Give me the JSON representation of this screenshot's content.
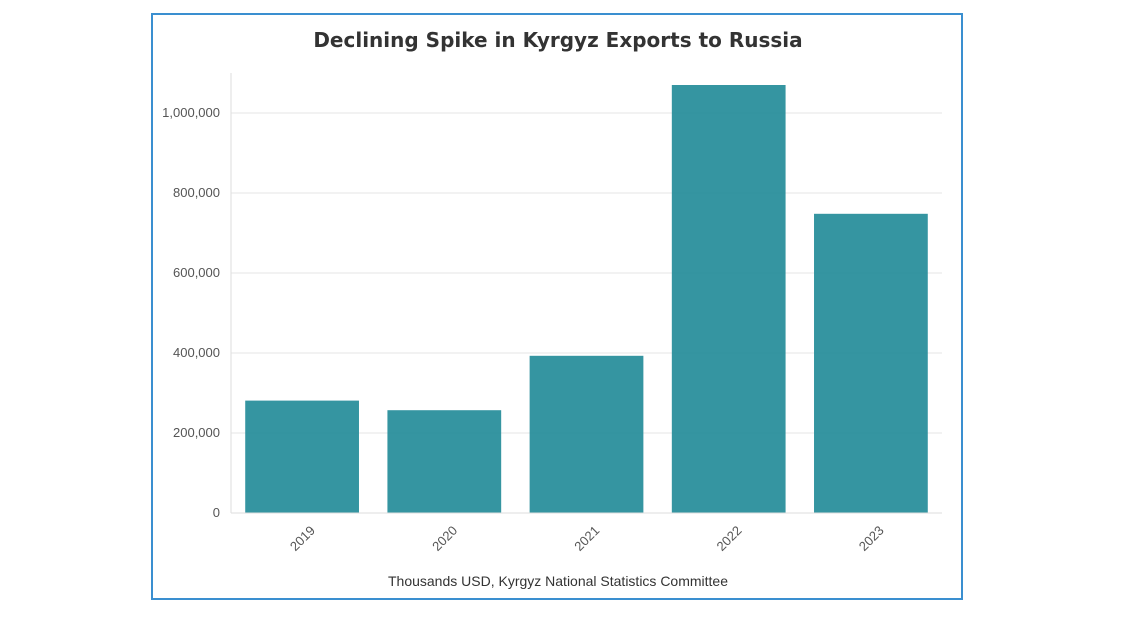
{
  "chart_data": {
    "type": "bar",
    "title": "Declining Spike in Kyrgyz Exports to Russia",
    "categories": [
      "2019",
      "2020",
      "2021",
      "2022",
      "2023"
    ],
    "values": [
      281000,
      257000,
      393000,
      1070000,
      748000
    ],
    "ylim": [
      0,
      1100000
    ],
    "yticks": [
      0,
      200000,
      400000,
      600000,
      800000,
      1000000
    ],
    "ytick_labels": [
      "0",
      "200,000",
      "400,000",
      "600,000",
      "800,000",
      "1,000,000"
    ],
    "xlabel": "Thousands USD, Kyrgyz National Statistics Committee",
    "ylabel": "",
    "bar_color": "#2a8f9c",
    "grid": true
  }
}
